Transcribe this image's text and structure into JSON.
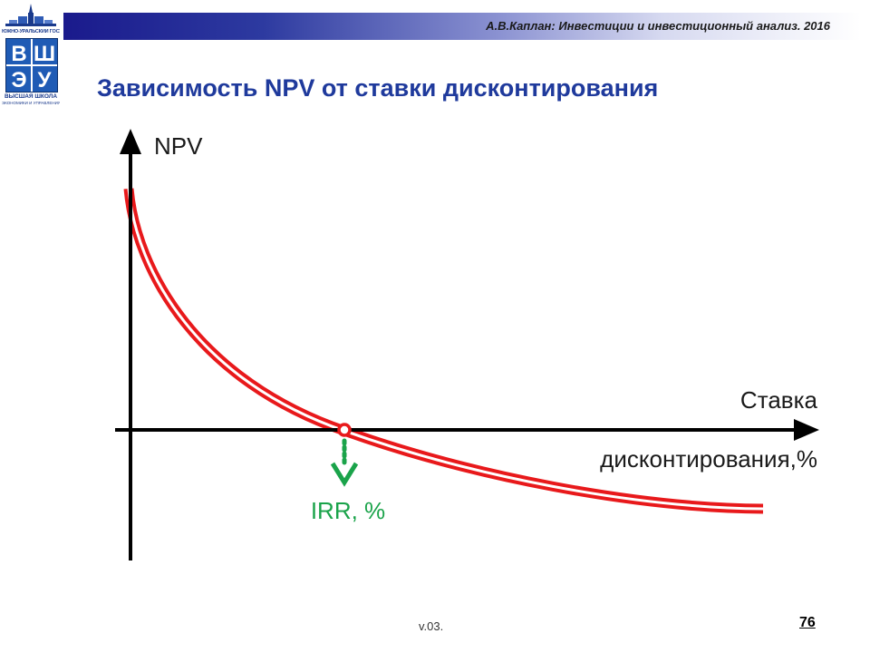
{
  "header": {
    "author_line": "А.В.Каплан: Инвестиции и инвестиционный анализ. 2016"
  },
  "logo": {
    "caption_top": "ЮЖНО-УРАЛЬСКИЙ ГОСУДАРСТВЕННЫЙ УНИВЕРСИТЕТ",
    "letters": [
      "В",
      "Ш",
      "Э",
      "У"
    ],
    "caption_bottom": "ВЫСШАЯ ШКОЛА",
    "caption_sub": "ЭКОНОМИКИ И УПРАВЛЕНИЯ"
  },
  "slide": {
    "title": "Зависимость NPV от ставки дисконтирования"
  },
  "diagram": {
    "y_axis_label": "NPV",
    "x_axis_label_line1": "Ставка",
    "x_axis_label_line2": "дисконтирования,%",
    "irr_label": "IRR, %",
    "colors": {
      "curve": "#e8191b",
      "axis": "#000000",
      "irr": "#1aa34a"
    }
  },
  "footer": {
    "version": "v.03.",
    "page_number": "76"
  }
}
